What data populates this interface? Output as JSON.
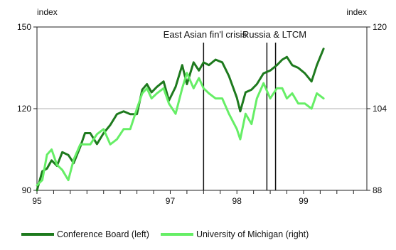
{
  "chart_data": {
    "type": "line",
    "x": [
      1995.0,
      1995.25,
      1995.5,
      1995.75,
      1996.0,
      1996.25,
      1996.5,
      1996.75,
      1997.0,
      1997.25,
      1997.5,
      1997.75,
      1998.0,
      1998.25,
      1998.5,
      1998.75,
      1999.0,
      1999.25,
      1999.5,
      1999.75
    ],
    "xlim": [
      1995.0,
      1999.95
    ],
    "xticks": [
      {
        "value": 1995,
        "label": "95"
      },
      {
        "value": 1997,
        "label": "97"
      },
      {
        "value": 1998,
        "label": "98"
      },
      {
        "value": 1999,
        "label": "99"
      }
    ],
    "left_axis": {
      "label": "index",
      "ylim": [
        90,
        150
      ],
      "ticks": [
        "90",
        "120",
        "150"
      ]
    },
    "right_axis": {
      "label": "index",
      "ylim": [
        88,
        120
      ],
      "ticks": [
        "88",
        "104",
        "120"
      ]
    },
    "grid": "horizontal at 120 only",
    "series": [
      {
        "name": "Conference Board (left)",
        "axis": "left",
        "color": "#1e7a1e",
        "points": [
          [
            1995.0,
            90
          ],
          [
            1995.08,
            97
          ],
          [
            1995.15,
            98
          ],
          [
            1995.22,
            101
          ],
          [
            1995.3,
            99
          ],
          [
            1995.38,
            104
          ],
          [
            1995.47,
            103
          ],
          [
            1995.55,
            100
          ],
          [
            1995.65,
            106
          ],
          [
            1995.72,
            111
          ],
          [
            1995.8,
            111
          ],
          [
            1995.9,
            107
          ],
          [
            1996.0,
            111
          ],
          [
            1996.1,
            114
          ],
          [
            1996.2,
            118
          ],
          [
            1996.3,
            119
          ],
          [
            1996.4,
            118
          ],
          [
            1996.5,
            118
          ],
          [
            1996.58,
            127
          ],
          [
            1996.65,
            129
          ],
          [
            1996.72,
            126
          ],
          [
            1996.8,
            128
          ],
          [
            1996.9,
            130
          ],
          [
            1996.98,
            123
          ],
          [
            1997.08,
            128
          ],
          [
            1997.18,
            136
          ],
          [
            1997.25,
            129
          ],
          [
            1997.35,
            137
          ],
          [
            1997.43,
            134
          ],
          [
            1997.5,
            137
          ],
          [
            1997.58,
            136
          ],
          [
            1997.68,
            138
          ],
          [
            1997.78,
            137
          ],
          [
            1997.88,
            132
          ],
          [
            1998.0,
            124
          ],
          [
            1998.05,
            119
          ],
          [
            1998.13,
            126
          ],
          [
            1998.22,
            127
          ],
          [
            1998.3,
            129
          ],
          [
            1998.4,
            133
          ],
          [
            1998.5,
            134
          ],
          [
            1998.6,
            136
          ],
          [
            1998.68,
            138
          ],
          [
            1998.75,
            139
          ],
          [
            1998.83,
            136
          ],
          [
            1998.92,
            135
          ],
          [
            1999.02,
            133
          ],
          [
            1999.12,
            130
          ],
          [
            1999.2,
            136
          ],
          [
            1999.3,
            142
          ]
        ]
      },
      {
        "name": "University of Michigan (right)",
        "axis": "right",
        "color": "#66ee66",
        "points": [
          [
            1995.0,
            89
          ],
          [
            1995.08,
            90
          ],
          [
            1995.15,
            95
          ],
          [
            1995.22,
            96
          ],
          [
            1995.3,
            93
          ],
          [
            1995.38,
            92
          ],
          [
            1995.47,
            90
          ],
          [
            1995.55,
            94
          ],
          [
            1995.65,
            97
          ],
          [
            1995.72,
            97
          ],
          [
            1995.8,
            97
          ],
          [
            1995.9,
            99
          ],
          [
            1996.0,
            100
          ],
          [
            1996.1,
            97
          ],
          [
            1996.2,
            98
          ],
          [
            1996.3,
            100
          ],
          [
            1996.4,
            100
          ],
          [
            1996.5,
            104
          ],
          [
            1996.58,
            107
          ],
          [
            1996.65,
            108
          ],
          [
            1996.72,
            106
          ],
          [
            1996.8,
            107
          ],
          [
            1996.9,
            108
          ],
          [
            1996.98,
            105
          ],
          [
            1997.08,
            103
          ],
          [
            1997.18,
            108
          ],
          [
            1997.25,
            111
          ],
          [
            1997.35,
            108
          ],
          [
            1997.43,
            110
          ],
          [
            1997.5,
            108
          ],
          [
            1997.58,
            107
          ],
          [
            1997.68,
            106
          ],
          [
            1997.78,
            106
          ],
          [
            1997.88,
            103
          ],
          [
            1998.0,
            100
          ],
          [
            1998.05,
            98
          ],
          [
            1998.13,
            103
          ],
          [
            1998.22,
            101
          ],
          [
            1998.3,
            106
          ],
          [
            1998.4,
            109
          ],
          [
            1998.5,
            106
          ],
          [
            1998.6,
            108
          ],
          [
            1998.68,
            108
          ],
          [
            1998.75,
            106
          ],
          [
            1998.83,
            107
          ],
          [
            1998.92,
            105
          ],
          [
            1999.02,
            105
          ],
          [
            1999.12,
            104
          ],
          [
            1999.2,
            107
          ],
          [
            1999.3,
            106
          ]
        ]
      }
    ],
    "annotations": [
      {
        "label": "East Asian fin'l crisis",
        "x": 1997.5
      },
      {
        "label": "Russia & LTCM",
        "x": [
          1998.45,
          1998.58
        ]
      }
    ],
    "legend": {
      "placement": "bottom"
    }
  }
}
